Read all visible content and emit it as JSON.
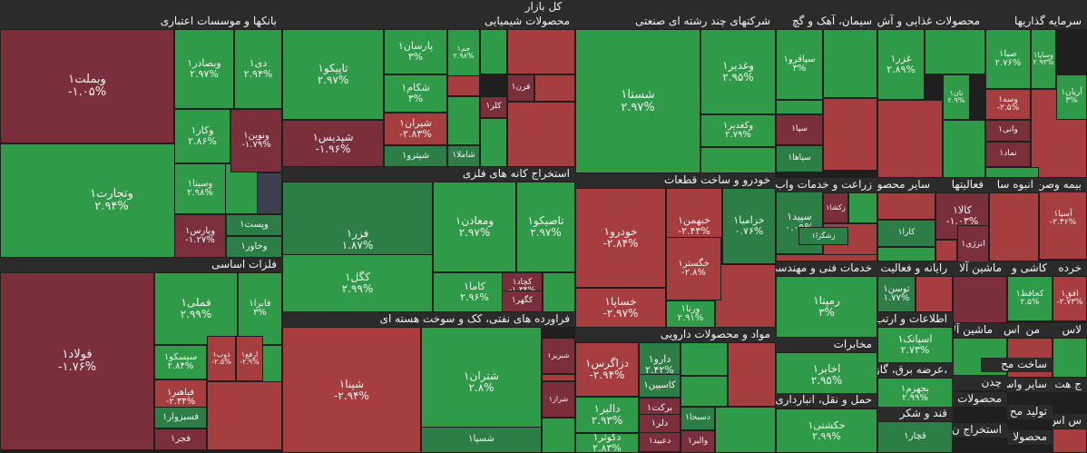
{
  "chart_data": {
    "type": "treemap",
    "title": "کل بازار",
    "colors": {
      "up": "#2f9a47",
      "upDark": "#2c7d46",
      "down": "#a63d3f",
      "downDark": "#7a2f3a",
      "neutral": "#3b3f4f"
    },
    "sectors": [
      {
        "name": "بانکها و موسسات اعتباری"
      },
      {
        "name": "محصولات شیمیایی"
      },
      {
        "name": "شرکتهای چند رشته ای صنعتی"
      },
      {
        "name": "سیمان، آهک و گچ"
      },
      {
        "name": "محصولات غذایی و آش"
      },
      {
        "name": "سرمایه گذاریها"
      },
      {
        "name": "فلزات اساسی"
      },
      {
        "name": "استخراج کانه های فلزی"
      },
      {
        "name": "خودرو و ساخت قطعات"
      },
      {
        "name": "حمل و نقل، انبارداری"
      },
      {
        "name": "زراعت و خدمات واب"
      },
      {
        "name": "سایر محصو"
      },
      {
        "name": "فعالیتها"
      },
      {
        "name": "بیمه وصن"
      },
      {
        "name": "انبوه سا"
      },
      {
        "name": "فراورده های نفتی، کک و سوخت هسته ای"
      },
      {
        "name": "مواد و محصولات دارویی"
      },
      {
        "name": "خدمات فنی و مهندسی"
      },
      {
        "name": "مخابرات"
      },
      {
        "name": "رایانه و فعالیت"
      },
      {
        "name": "ماشین آلا"
      },
      {
        "name": "کاشی و"
      },
      {
        "name": "خرده"
      },
      {
        "name": "اطلاعات و ارتب"
      },
      {
        "name": "اس"
      },
      {
        "name": "من"
      },
      {
        "name": "ماشین آلا"
      },
      {
        "name": "لاس"
      },
      {
        "name": "ساخت مح"
      },
      {
        "name": "،عرضه برق، گاز"
      },
      {
        "name": "ج هت"
      },
      {
        "name": "سایر واس"
      },
      {
        "name": "چدن"
      },
      {
        "name": "محصولات"
      },
      {
        "name": "تولید مح"
      },
      {
        "name": "قند و شکر"
      },
      {
        "name": "استخراج ن"
      },
      {
        "name": "س اس"
      },
      {
        "name": "محصولا"
      }
    ],
    "stocks": [
      {
        "name": "وبملت۱",
        "change": "-۱.۰۵%",
        "value": -1.05
      },
      {
        "name": "وتجارت۱",
        "change": "۲.۹۴%",
        "value": 2.94
      },
      {
        "name": "وبصادر۱",
        "change": "۲.۹۷%",
        "value": 2.97
      },
      {
        "name": "دی۱",
        "change": "۲.۹۴%",
        "value": 2.94
      },
      {
        "name": "وکار۱",
        "change": "۲.۸۶%",
        "value": 2.86
      },
      {
        "name": "ونوین۱",
        "change": "-۱.۷۹%",
        "value": -1.79
      },
      {
        "name": "وسینا۱",
        "change": "۲.۹۸%",
        "value": 2.98
      },
      {
        "name": "وپست۱",
        "change": "",
        "value": 1
      },
      {
        "name": "وپارس۱",
        "change": "-۱.۲۷%",
        "value": -1.27
      },
      {
        "name": "وخاور۱",
        "change": "",
        "value": 1
      },
      {
        "name": "تاپیکو۱",
        "change": "۲.۹۷%",
        "value": 2.97
      },
      {
        "name": "شپدیس۱",
        "change": "-۱.۹۶%",
        "value": -1.96
      },
      {
        "name": "پارسان۱",
        "change": "۳%",
        "value": 3
      },
      {
        "name": "جم۱",
        "change": "۲.۹۸%",
        "value": 2.98
      },
      {
        "name": "شکام۱",
        "change": "۳%",
        "value": 3
      },
      {
        "name": "شیران۱",
        "change": "-۲.۸۳%",
        "value": -2.83
      },
      {
        "name": "شپترو۱",
        "change": "",
        "value": 1
      },
      {
        "name": "شاملا۱",
        "change": "",
        "value": 1
      },
      {
        "name": "کلر۱",
        "change": "",
        "value": -1
      },
      {
        "name": "فرن۱",
        "change": "",
        "value": -1
      },
      {
        "name": "شستا۱",
        "change": "۲.۹۷%",
        "value": 2.97
      },
      {
        "name": "وغدیر۱",
        "change": "۲.۹۵%",
        "value": 2.95
      },
      {
        "name": "وکغدیر۱",
        "change": "۲.۷۹%",
        "value": 2.79
      },
      {
        "name": "سپاقرو۱",
        "change": "۳%",
        "value": 3
      },
      {
        "name": "سپا۱",
        "change": "",
        "value": -1
      },
      {
        "name": "سپاها۱",
        "change": "",
        "value": 1
      },
      {
        "name": "غزر۱",
        "change": "۲.۸۹%",
        "value": 2.89
      },
      {
        "name": "نان۱",
        "change": "۲.۹%",
        "value": 2.9
      },
      {
        "name": "صبا۱",
        "change": "۲.۷۶%",
        "value": 2.76
      },
      {
        "name": "وساپا۱",
        "change": "۲.۹۳%",
        "value": 2.93
      },
      {
        "name": "آریان۱",
        "change": "۳%",
        "value": 3
      },
      {
        "name": "وسه۱",
        "change": "-۲.۵%",
        "value": -2.5
      },
      {
        "name": "وانی۱",
        "change": "",
        "value": -1
      },
      {
        "name": "نماد۱",
        "change": "",
        "value": -1
      },
      {
        "name": "فولاد۱",
        "change": "-۱.۷۶%",
        "value": -1.76
      },
      {
        "name": "فملی۱",
        "change": "۲.۹۹%",
        "value": 2.99
      },
      {
        "name": "فابرا۱",
        "change": "۳%",
        "value": 3
      },
      {
        "name": "سیسکو۱",
        "change": "۲.۸۴%",
        "value": 2.84
      },
      {
        "name": "ذوب۱",
        "change": "-۲.۵%",
        "value": -2.5
      },
      {
        "name": "ارفع۱",
        "change": "-۲.۹%",
        "value": -2.9
      },
      {
        "name": "فباهنر۱",
        "change": "-۲.۳۴%",
        "value": -2.34
      },
      {
        "name": "فسبزوار۱",
        "change": "",
        "value": 1
      },
      {
        "name": "فجر۱",
        "change": "",
        "value": -1
      },
      {
        "name": "فزر۱",
        "change": "۱.۸۷%",
        "value": 1.87
      },
      {
        "name": "ومعادن۱",
        "change": "۲.۹۷%",
        "value": 2.97
      },
      {
        "name": "تاصیکو۱",
        "change": "۲.۹۷%",
        "value": 2.97
      },
      {
        "name": "کگل۱",
        "change": "۲.۹۹%",
        "value": 2.99
      },
      {
        "name": "کاما۱",
        "change": "۲.۹۶%",
        "value": 2.96
      },
      {
        "name": "کچاد۱",
        "change": "-۱.۳۴%",
        "value": -1.34
      },
      {
        "name": "کگهر۱",
        "change": "",
        "value": -1
      },
      {
        "name": "خودرو۱",
        "change": "-۲.۸۴%",
        "value": -2.84
      },
      {
        "name": "خساپا۱",
        "change": "-۲.۹۷%",
        "value": -2.97
      },
      {
        "name": "خبهمن۱",
        "change": "-۲.۴۳%",
        "value": -2.43
      },
      {
        "name": "خزامیا۱",
        "change": "۰.۷۶%",
        "value": 0.76
      },
      {
        "name": "خگستر۱",
        "change": "-۲.۸%",
        "value": -2.8
      },
      {
        "name": "ورنا۱",
        "change": "۲.۹۱%",
        "value": 2.91
      },
      {
        "name": "سپید۱",
        "change": "۰.۰۹%",
        "value": 0.09
      },
      {
        "name": "زکشا۱",
        "change": "",
        "value": -1
      },
      {
        "name": "زشگزا۱",
        "change": "",
        "value": 1
      },
      {
        "name": "کالا۱",
        "change": "-۱.۰۳%",
        "value": -1.03
      },
      {
        "name": "انرژی۱",
        "change": "",
        "value": -1
      },
      {
        "name": "کارا۱",
        "change": "",
        "value": 1
      },
      {
        "name": "آسیا۱",
        "change": "-۲.۳۶%",
        "value": -2.36
      },
      {
        "name": "شپنا۱",
        "change": "-۲.۹۴%",
        "value": -2.94
      },
      {
        "name": "شتران۱",
        "change": "۲.۸%",
        "value": 2.8
      },
      {
        "name": "شسپا۱",
        "change": "",
        "value": 1
      },
      {
        "name": "شبریز۱",
        "change": "",
        "value": -1
      },
      {
        "name": "شراز۱",
        "change": "",
        "value": -1
      },
      {
        "name": "دزاگرس۱",
        "change": "-۲.۹۴%",
        "value": -2.94
      },
      {
        "name": "دالبر۱",
        "change": "۲.۹۳%",
        "value": 2.93
      },
      {
        "name": "دکوثر۱",
        "change": "۲.۸۳%",
        "value": 2.83
      },
      {
        "name": "دارو۱",
        "change": "۲.۴۲%",
        "value": 2.42
      },
      {
        "name": "کاسپین۱",
        "change": "",
        "value": 1
      },
      {
        "name": "برکت۱",
        "change": "",
        "value": -1
      },
      {
        "name": "دلر۱",
        "change": "",
        "value": -1
      },
      {
        "name": "دعبید۱",
        "change": "",
        "value": -1
      },
      {
        "name": "دسبحا۱",
        "change": "",
        "value": 1
      },
      {
        "name": "والبر۱",
        "change": "",
        "value": -1
      },
      {
        "name": "رمپنا۱",
        "change": "۳%",
        "value": 3
      },
      {
        "name": "اخابر۱",
        "change": "۲.۹۵%",
        "value": 2.95
      },
      {
        "name": "توسن۱",
        "change": "۱.۷۷%",
        "value": 1.77
      },
      {
        "name": "اسپاتک۱",
        "change": "۲.۷۳%",
        "value": 2.73
      },
      {
        "name": "بجهرم۱",
        "change": "۲.۹۹%",
        "value": 2.99
      },
      {
        "name": "قچار۱",
        "change": "",
        "value": 1
      },
      {
        "name": "حکشتی۱",
        "change": "۲.۹۹%",
        "value": 2.99
      },
      {
        "name": "کحافظ۱",
        "change": "۲.۵%",
        "value": 2.5
      },
      {
        "name": "افق۱",
        "change": "-۲.۷۳%",
        "value": -2.73
      }
    ]
  }
}
